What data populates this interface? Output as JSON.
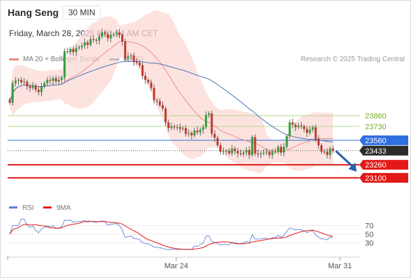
{
  "header": {
    "instrument": "Hang Seng",
    "interval": "30 MIN",
    "datetime": "Friday, March 28, 2025 8:51:14 AM CET",
    "credit": "Research © 2025 Trading Central"
  },
  "legend_top": [
    {
      "label": "MA 20 + Bollinger Bands",
      "color": "#f08c84"
    },
    {
      "label": "MA 50",
      "color": "#2e5f9e"
    }
  ],
  "legend_bottom": [
    {
      "label": "RSI",
      "color": "#5b7fd4"
    },
    {
      "label": "9MA",
      "color": "#e31919"
    }
  ],
  "chart_data": [
    {
      "type": "candlestick",
      "y_axis_labels": [
        "23860",
        "23730",
        "23560",
        "23433",
        "23260",
        "23100"
      ],
      "levels": [
        {
          "value": 23860,
          "role": "resistance",
          "color": "#9bc64b"
        },
        {
          "value": 23730,
          "role": "resistance",
          "color": "#9bc64b"
        },
        {
          "value": 23560,
          "role": "pivot",
          "color": "#2f6fe0"
        },
        {
          "value": 23433,
          "role": "last price",
          "color": "#2b2b2b"
        },
        {
          "value": 23260,
          "role": "support",
          "color": "#e31919"
        },
        {
          "value": 23100,
          "role": "support",
          "color": "#e31919"
        }
      ],
      "x_tick_labels": [
        "Mar 24",
        "Mar 31"
      ],
      "ylim": [
        22980,
        24470
      ],
      "close_series": [
        24020,
        24260,
        24290,
        24300,
        24270,
        24280,
        24220,
        24200,
        24230,
        24180,
        24150,
        24220,
        24260,
        24300,
        24290,
        24320,
        24280,
        24300,
        24330,
        24650,
        24640,
        24680,
        24640,
        24690,
        24700,
        24720,
        24760,
        24730,
        24800,
        24790,
        24780,
        24830,
        24880,
        24860,
        24810,
        24850,
        24860,
        24880,
        24850,
        24770,
        24560,
        24590,
        24600,
        24520,
        24510,
        24480,
        24350,
        24300,
        24270,
        24200,
        24050,
        24040,
        23990,
        23950,
        23780,
        23710,
        23730,
        23720,
        23720,
        23700,
        23710,
        23640,
        23650,
        23620,
        23680,
        23660,
        23690,
        23720,
        23870,
        23890,
        23640,
        23590,
        23500,
        23420,
        23430,
        23430,
        23400,
        23460,
        23430,
        23400,
        23390,
        23410,
        23440,
        23380,
        23600,
        23400,
        23390,
        23400,
        23410,
        23420,
        23380,
        23420,
        23420,
        23480,
        23410,
        23480,
        23610,
        23780,
        23750,
        23720,
        23740,
        23730,
        23700,
        23650,
        23690,
        23720,
        23580,
        23500,
        23420,
        23420,
        23380,
        23460,
        23430
      ],
      "annotation": "bearish arrow projecting toward 23260"
    },
    {
      "type": "line",
      "series": [
        {
          "name": "RSI"
        },
        {
          "name": "9MA"
        }
      ],
      "y_tick_labels": [
        "70",
        "50",
        "30"
      ],
      "ylim": [
        10,
        90
      ]
    }
  ]
}
